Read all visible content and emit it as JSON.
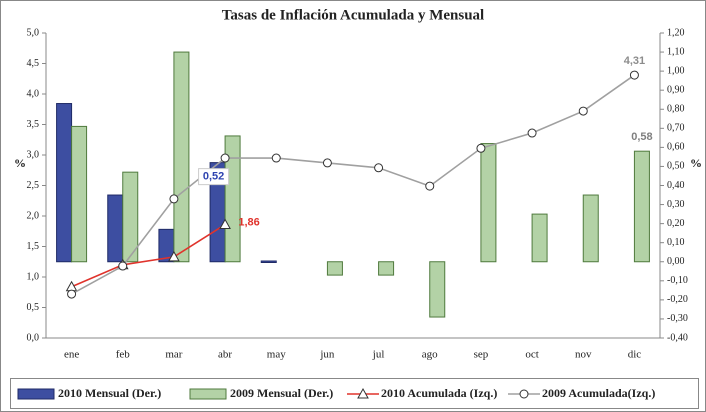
{
  "chart_data": {
    "type": "bar-line",
    "title": "Tasas de Inflación Acumulada y Mensual",
    "y_label": "%",
    "y2_label": "%",
    "categories": [
      "ene",
      "feb",
      "mar",
      "abr",
      "may",
      "jun",
      "jul",
      "ago",
      "sep",
      "oct",
      "nov",
      "dic"
    ],
    "ylim": [
      0,
      5
    ],
    "yticks": [
      {
        "value": 0,
        "label": "0,0"
      },
      {
        "value": 0.5,
        "label": "0,5"
      },
      {
        "value": 1,
        "label": "1,0"
      },
      {
        "value": 1.5,
        "label": "1,5"
      },
      {
        "value": 2,
        "label": "2,0"
      },
      {
        "value": 2.5,
        "label": "2,5"
      },
      {
        "value": 3,
        "label": "3,0"
      },
      {
        "value": 3.5,
        "label": "3,5"
      },
      {
        "value": 4,
        "label": "4,0"
      },
      {
        "value": 4.5,
        "label": "4,5"
      },
      {
        "value": 5,
        "label": "5,0"
      }
    ],
    "y2lim": [
      -0.4,
      1.2
    ],
    "y2ticks": [
      {
        "value": -0.4,
        "label": "-0,40"
      },
      {
        "value": -0.3,
        "label": "-0,30"
      },
      {
        "value": -0.2,
        "label": "-0,20"
      },
      {
        "value": -0.1,
        "label": "-0,10"
      },
      {
        "value": 0,
        "label": "0,00"
      },
      {
        "value": 0.1,
        "label": "0,10"
      },
      {
        "value": 0.2,
        "label": "0,20"
      },
      {
        "value": 0.3,
        "label": "0,30"
      },
      {
        "value": 0.4,
        "label": "0,40"
      },
      {
        "value": 0.5,
        "label": "0,50"
      },
      {
        "value": 0.6,
        "label": "0,60"
      },
      {
        "value": 0.7,
        "label": "0,70"
      },
      {
        "value": 0.8,
        "label": "0,80"
      },
      {
        "value": 0.9,
        "label": "0,90"
      },
      {
        "value": 1,
        "label": "1,00"
      },
      {
        "value": 1.1,
        "label": "1,10"
      },
      {
        "value": 1.2,
        "label": "1,20"
      }
    ],
    "grid": false,
    "legend": "bottom",
    "series": [
      {
        "name": "2010 Mensual (Der.)",
        "type": "bar",
        "axis": "y2",
        "color": "#3d4ea1",
        "edge": "#1f2a66",
        "label_color": "#2f44b0",
        "values": [
          0.83,
          0.35,
          0.17,
          0.52,
          0.0,
          null,
          null,
          null,
          null,
          null,
          null,
          null
        ],
        "value_labels": [
          null,
          null,
          null,
          "0,52",
          null,
          null,
          null,
          null,
          null,
          null,
          null,
          null
        ]
      },
      {
        "name": "2009 Mensual (Der.)",
        "type": "bar",
        "axis": "y2",
        "color": "#b3d2a6",
        "edge": "#4f7a3d",
        "label_color": "#7f7f7f",
        "values": [
          0.71,
          0.47,
          1.1,
          0.66,
          null,
          -0.07,
          -0.07,
          -0.29,
          0.62,
          0.25,
          0.35,
          0.58
        ],
        "value_labels": [
          null,
          null,
          null,
          null,
          null,
          null,
          null,
          null,
          null,
          null,
          null,
          "0,58"
        ]
      },
      {
        "name": "2010 Acumulada (Izq.)",
        "type": "line",
        "marker": "triangle",
        "color": "#e0332c",
        "label_color": "#e0332c",
        "values": [
          0.84,
          1.2,
          1.33,
          1.86,
          null,
          null,
          null,
          null,
          null,
          null,
          null,
          null
        ],
        "value_labels": [
          null,
          null,
          null,
          "1,86",
          null,
          null,
          null,
          null,
          null,
          null,
          null,
          null
        ]
      },
      {
        "name": "2009 Acumulada(Izq.)",
        "type": "line",
        "marker": "circle",
        "color": "#a0a0a0",
        "label_color": "#8c8c8c",
        "values": [
          0.72,
          1.18,
          2.28,
          2.95,
          2.95,
          2.87,
          2.79,
          2.49,
          3.11,
          3.36,
          3.72,
          4.31
        ],
        "value_labels": [
          null,
          null,
          null,
          null,
          null,
          null,
          null,
          null,
          null,
          null,
          null,
          "4,31"
        ]
      }
    ]
  }
}
